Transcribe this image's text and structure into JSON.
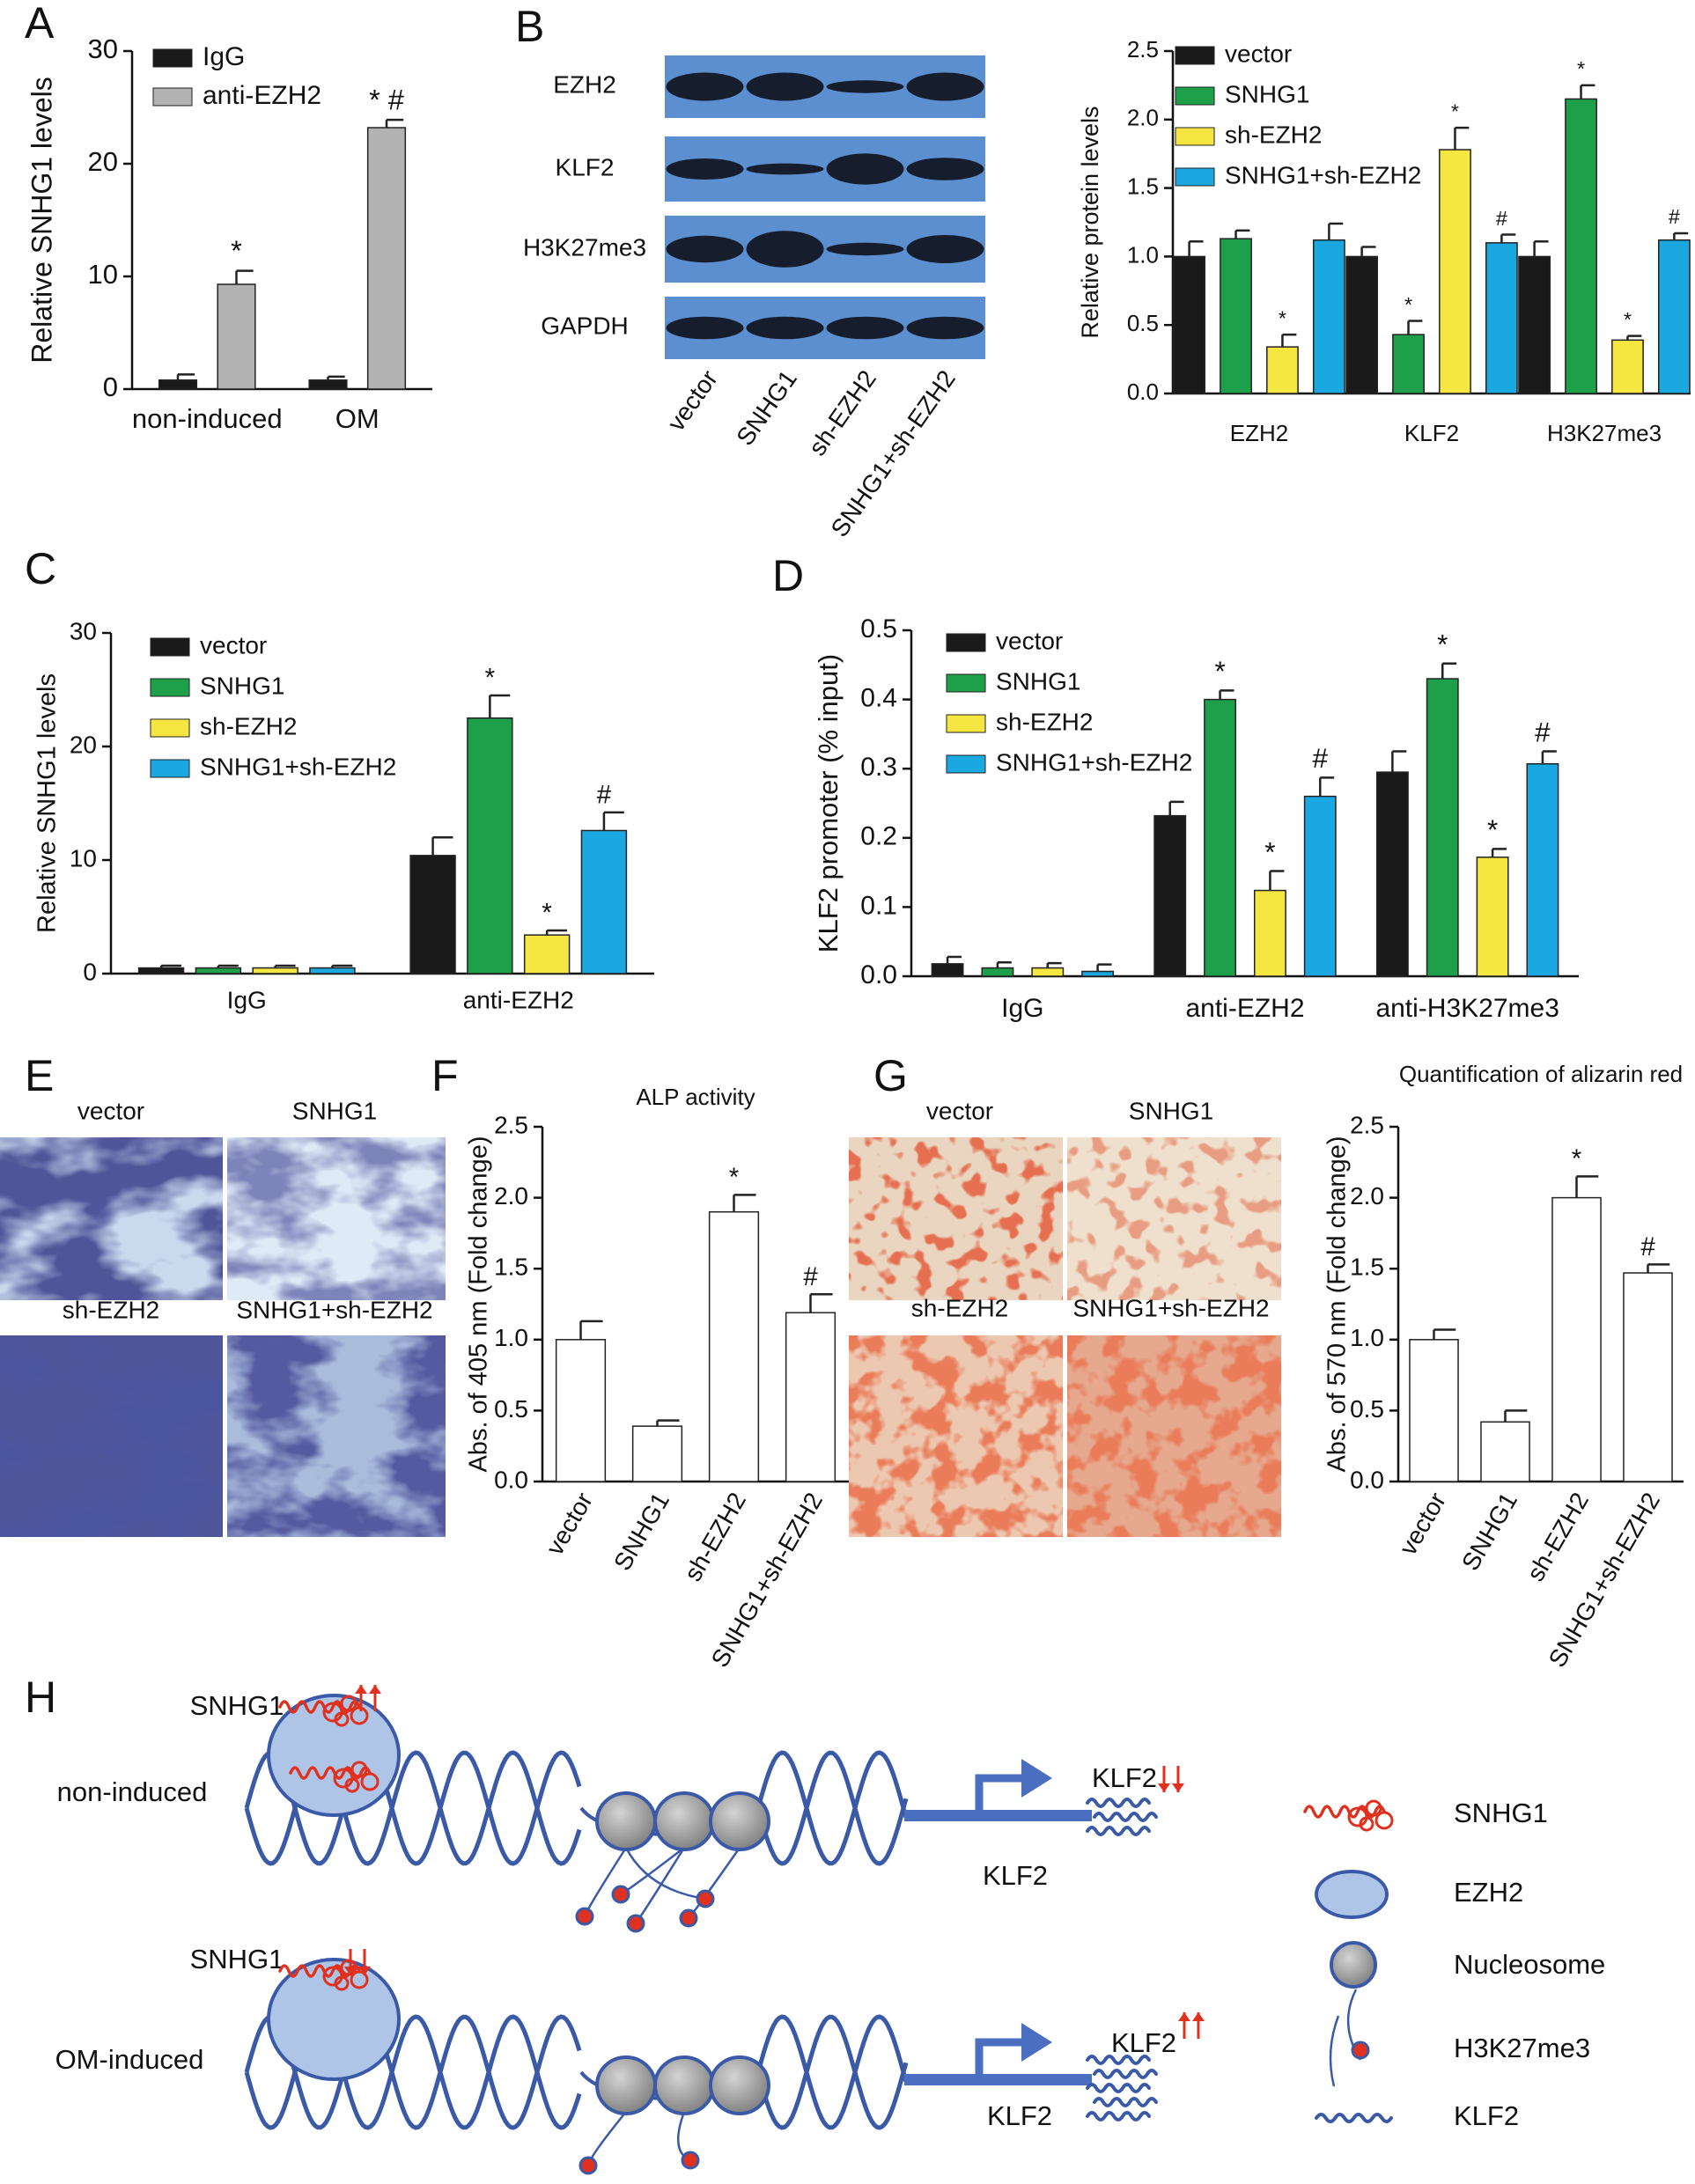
{
  "chart_data": [
    {
      "type": "bar",
      "ylabel": "Relative SNHG1 levels",
      "categories": [
        "non-induced",
        "OM"
      ],
      "ylim": [
        0,
        30
      ],
      "yticks": [
        0,
        10,
        20,
        30
      ],
      "grid": false,
      "series": [
        {
          "name": "IgG",
          "color": "#1a1a1a",
          "values": [
            0.8,
            0.8
          ],
          "errors": [
            0.5,
            0.3
          ],
          "annotations": [
            null,
            null
          ]
        },
        {
          "name": "anti-EZH2",
          "color": "#b3b3b3",
          "values": [
            9.3,
            23.2
          ],
          "errors": [
            1.2,
            0.7
          ],
          "annotations": [
            "*",
            "* #"
          ]
        }
      ]
    },
    {
      "type": "bar",
      "ylabel": "Relative protein levels",
      "categories": [
        "EZH2",
        "KLF2",
        "H3K27me3"
      ],
      "ylim": [
        0,
        2.5
      ],
      "yticks": [
        {
          "value": 0,
          "label": "0.0"
        },
        0.5,
        {
          "value": 1,
          "label": "1.0"
        },
        1.5,
        {
          "value": 2,
          "label": "2.0"
        },
        2.5
      ],
      "grid": false,
      "series": [
        {
          "name": "vector",
          "color": "#1a1a1a",
          "values": [
            1.0,
            1.0,
            1.0
          ],
          "errors": [
            0.11,
            0.07,
            0.11
          ],
          "annotations": [
            null,
            null,
            null
          ]
        },
        {
          "name": "SNHG1",
          "color": "#1ea04a",
          "values": [
            1.13,
            0.43,
            2.15
          ],
          "errors": [
            0.06,
            0.1,
            0.1
          ],
          "annotations": [
            null,
            "*",
            "*"
          ]
        },
        {
          "name": "sh-EZH2",
          "color": "#f5e642",
          "values": [
            0.34,
            1.78,
            0.39
          ],
          "errors": [
            0.09,
            0.16,
            0.03
          ],
          "annotations": [
            "*",
            "*",
            "*"
          ]
        },
        {
          "name": "SNHG1+sh-EZH2",
          "color": "#1ba8e0",
          "values": [
            1.12,
            1.1,
            1.12
          ],
          "errors": [
            0.12,
            0.06,
            0.05
          ],
          "annotations": [
            null,
            "#",
            "#"
          ]
        }
      ]
    },
    {
      "type": "bar",
      "ylabel": "Relative SNHG1 levels",
      "categories": [
        "IgG",
        "anti-EZH2"
      ],
      "ylim": [
        0,
        30
      ],
      "yticks": [
        0,
        10,
        20,
        30
      ],
      "grid": false,
      "series": [
        {
          "name": "vector",
          "color": "#1a1a1a",
          "values": [
            0.5,
            10.4
          ],
          "errors": [
            0.2,
            1.6
          ],
          "annotations": [
            null,
            null
          ]
        },
        {
          "name": "SNHG1",
          "color": "#1ea04a",
          "values": [
            0.5,
            22.5
          ],
          "errors": [
            0.2,
            2.0
          ],
          "annotations": [
            null,
            "*"
          ]
        },
        {
          "name": "sh-EZH2",
          "color": "#f5e642",
          "values": [
            0.5,
            3.4
          ],
          "errors": [
            0.2,
            0.4
          ],
          "annotations": [
            null,
            "*"
          ]
        },
        {
          "name": "SNHG1+sh-EZH2",
          "color": "#1ba8e0",
          "values": [
            0.5,
            12.6
          ],
          "errors": [
            0.2,
            1.6
          ],
          "annotations": [
            null,
            "#"
          ]
        }
      ]
    },
    {
      "type": "bar",
      "ylabel": "KLF2 promoter (% input)",
      "categories": [
        "IgG",
        "anti-EZH2",
        "anti-H3K27me3"
      ],
      "ylim": [
        0,
        0.5
      ],
      "yticks": [
        {
          "value": 0,
          "label": "0.0"
        },
        0.1,
        0.2,
        0.3,
        0.4,
        0.5
      ],
      "grid": false,
      "series": [
        {
          "name": "vector",
          "color": "#1a1a1a",
          "values": [
            0.018,
            0.232,
            0.295
          ],
          "errors": [
            0.01,
            0.02,
            0.03
          ],
          "annotations": [
            null,
            null,
            null
          ]
        },
        {
          "name": "SNHG1",
          "color": "#1ea04a",
          "values": [
            0.012,
            0.4,
            0.43
          ],
          "errors": [
            0.008,
            0.013,
            0.022
          ],
          "annotations": [
            null,
            "*",
            "*"
          ]
        },
        {
          "name": "sh-EZH2",
          "color": "#f5e642",
          "values": [
            0.012,
            0.124,
            0.172
          ],
          "errors": [
            0.007,
            0.028,
            0.012
          ],
          "annotations": [
            null,
            "*",
            "*"
          ]
        },
        {
          "name": "SNHG1+sh-EZH2",
          "color": "#1ba8e0",
          "values": [
            0.007,
            0.26,
            0.307
          ],
          "errors": [
            0.01,
            0.027,
            0.018
          ],
          "annotations": [
            null,
            "#",
            "#"
          ]
        }
      ]
    },
    {
      "type": "bar",
      "title": "ALP activity",
      "ylabel": "Abs. of 405 nm (Fold change)",
      "categories": [
        "vector",
        "SNHG1",
        "sh-EZH2",
        "SNHG1+sh-EZH2"
      ],
      "values": [
        1.0,
        0.39,
        1.9,
        1.19
      ],
      "errors": [
        0.13,
        0.04,
        0.12,
        0.13
      ],
      "annotations": [
        null,
        null,
        "*",
        "#"
      ],
      "color": "#ffffff",
      "ylim": [
        0,
        2.5
      ],
      "yticks": [
        {
          "value": 0,
          "label": "0.0"
        },
        0.5,
        {
          "value": 1,
          "label": "1.0"
        },
        1.5,
        {
          "value": 2,
          "label": "2.0"
        },
        2.5
      ],
      "grid": false
    },
    {
      "type": "bar",
      "title": "Quantification of alizarin red",
      "ylabel": "Abs. of 570 nm (Fold change)",
      "categories": [
        "vector",
        "SNHG1",
        "sh-EZH2",
        "SNHG1+sh-EZH2"
      ],
      "values": [
        1.0,
        0.42,
        2.0,
        1.47
      ],
      "errors": [
        0.07,
        0.08,
        0.15,
        0.06
      ],
      "annotations": [
        null,
        null,
        "*",
        "#"
      ],
      "color": "#ffffff",
      "ylim": [
        0,
        2.5
      ],
      "yticks": [
        {
          "value": 0,
          "label": "0.0"
        },
        0.5,
        {
          "value": 1,
          "label": "1.0"
        },
        1.5,
        {
          "value": 2,
          "label": "2.0"
        },
        2.5
      ],
      "grid": false
    }
  ],
  "panels": [
    "A",
    "B",
    "C",
    "D",
    "E",
    "F",
    "G",
    "H"
  ],
  "blot": {
    "rows": [
      "EZH2",
      "KLF2",
      "H3K27me3",
      "GAPDH"
    ],
    "lanes": [
      "vector",
      "SNHG1",
      "sh-EZH2",
      "SNHG1+sh-EZH2"
    ]
  },
  "stain_e": {
    "labels": [
      "vector",
      "SNHG1",
      "sh-EZH2",
      "SNHG1+sh-EZH2"
    ]
  },
  "stain_g": {
    "labels": [
      "vector",
      "SNHG1",
      "sh-EZH2",
      "SNHG1+sh-EZH2"
    ]
  },
  "diagram": {
    "rows": [
      {
        "label": "non-induced",
        "lncrna": "SNHG1",
        "transcript": "KLF2",
        "gene": "KLF2"
      },
      {
        "label": "OM-induced",
        "lncrna": "SNHG1",
        "transcript": "KLF2",
        "gene": "KLF2"
      }
    ],
    "legend": [
      "SNHG1",
      "EZH2",
      "Nucleosome",
      "H3K27me3",
      "KLF2"
    ]
  }
}
